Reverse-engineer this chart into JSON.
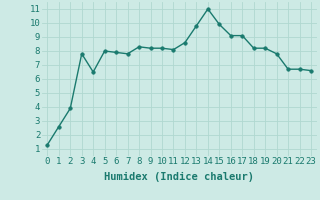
{
  "x": [
    0,
    1,
    2,
    3,
    4,
    5,
    6,
    7,
    8,
    9,
    10,
    11,
    12,
    13,
    14,
    15,
    16,
    17,
    18,
    19,
    20,
    21,
    22,
    23
  ],
  "y": [
    1.3,
    2.6,
    3.9,
    7.8,
    6.5,
    8.0,
    7.9,
    7.8,
    8.3,
    8.2,
    8.2,
    8.1,
    8.6,
    9.8,
    11.0,
    9.9,
    9.1,
    9.1,
    8.2,
    8.2,
    7.8,
    6.7,
    6.7,
    6.6
  ],
  "line_color": "#1a7a6e",
  "marker_color": "#1a7a6e",
  "bg_color": "#cdeae5",
  "grid_color": "#b0d8d0",
  "xlabel": "Humidex (Indice chaleur)",
  "xlim": [
    -0.5,
    23.5
  ],
  "ylim": [
    0.5,
    11.5
  ],
  "yticks": [
    1,
    2,
    3,
    4,
    5,
    6,
    7,
    8,
    9,
    10,
    11
  ],
  "xticks": [
    0,
    1,
    2,
    3,
    4,
    5,
    6,
    7,
    8,
    9,
    10,
    11,
    12,
    13,
    14,
    15,
    16,
    17,
    18,
    19,
    20,
    21,
    22,
    23
  ],
  "tick_label_color": "#1a7a6e",
  "axis_label_color": "#1a7a6e",
  "tick_fontsize": 6.5,
  "xlabel_fontsize": 7.5,
  "linewidth": 1.0,
  "markersize": 2.5
}
